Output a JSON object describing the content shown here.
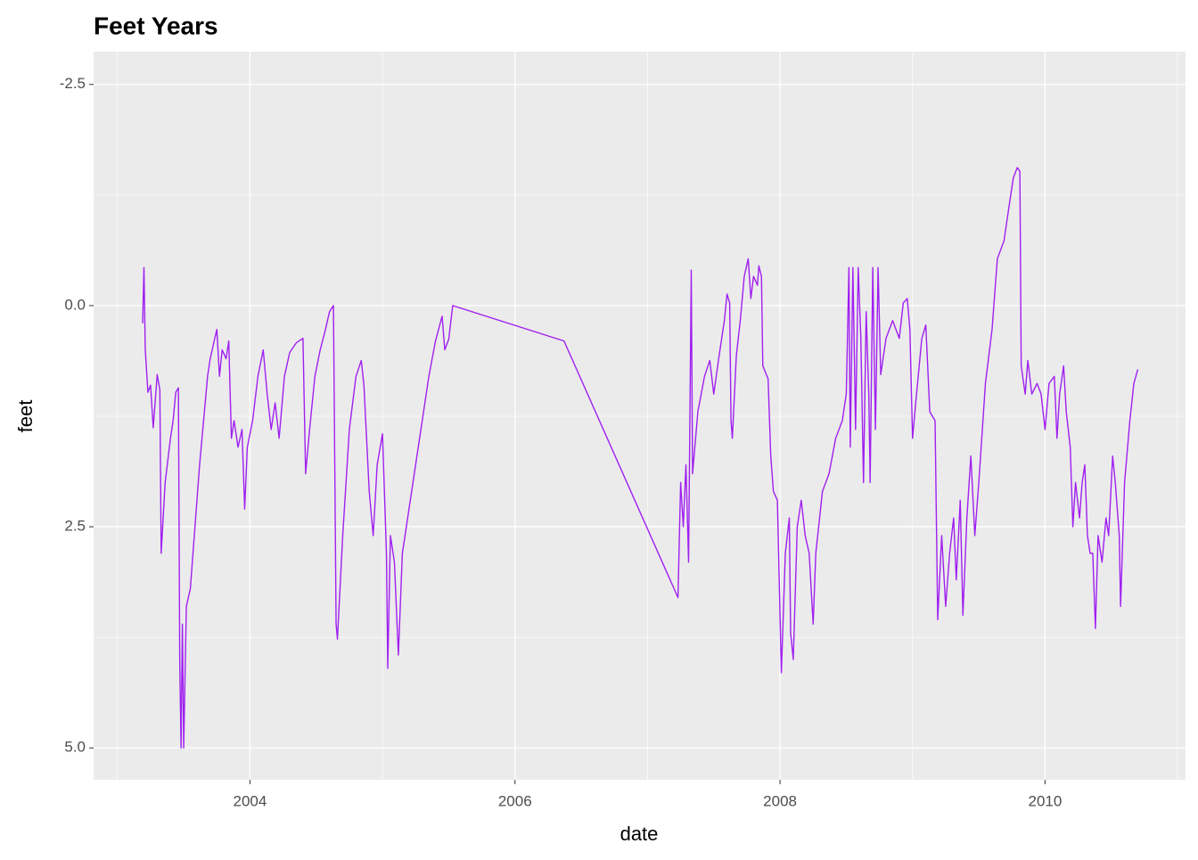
{
  "chart_data": {
    "type": "line",
    "title": "Feet Years",
    "x_label": "date",
    "y_label": "feet",
    "color": "#a020f0",
    "y_reversed": true,
    "grid": true,
    "xlim": [
      2002.82,
      2011.06
    ],
    "xticks": [
      2004,
      2006,
      2008,
      2010
    ],
    "xminor": [
      2003,
      2005,
      2007,
      2009,
      2011
    ],
    "ylim": [
      -2.87,
      5.36
    ],
    "yticks": [
      -2.5,
      {
        "value": 0,
        "label": "0.0"
      },
      2.5,
      {
        "value": 5,
        "label": "5.0"
      }
    ],
    "yminor": [
      -1.25,
      1.25,
      3.75
    ],
    "x": [
      2003.19,
      2003.2,
      2003.21,
      2003.23,
      2003.25,
      2003.27,
      2003.3,
      2003.32,
      2003.33,
      2003.36,
      2003.4,
      2003.42,
      2003.44,
      2003.46,
      2003.47,
      2003.48,
      2003.49,
      2003.5,
      2003.52,
      2003.55,
      2003.58,
      2003.62,
      2003.65,
      2003.68,
      2003.7,
      2003.73,
      2003.75,
      2003.77,
      2003.79,
      2003.82,
      2003.84,
      2003.86,
      2003.88,
      2003.91,
      2003.94,
      2003.96,
      2003.98,
      2004.02,
      2004.06,
      2004.1,
      2004.13,
      2004.16,
      2004.19,
      2004.22,
      2004.26,
      2004.3,
      2004.35,
      2004.4,
      2004.42,
      2004.45,
      2004.49,
      2004.53,
      2004.57,
      2004.6,
      2004.63,
      2004.65,
      2004.66,
      2004.7,
      2004.75,
      2004.8,
      2004.84,
      2004.86,
      2004.9,
      2004.93,
      2004.96,
      2005.0,
      2005.03,
      2005.04,
      2005.06,
      2005.09,
      2005.11,
      2005.12,
      2005.15,
      2005.2,
      2005.25,
      2005.3,
      2005.35,
      2005.4,
      2005.45,
      2005.47,
      2005.5,
      2005.53,
      2006.37,
      2007.23,
      2007.25,
      2007.27,
      2007.29,
      2007.31,
      2007.33,
      2007.34,
      2007.38,
      2007.43,
      2007.47,
      2007.5,
      2007.54,
      2007.58,
      2007.6,
      2007.62,
      2007.63,
      2007.64,
      2007.67,
      2007.7,
      2007.73,
      2007.76,
      2007.78,
      2007.8,
      2007.83,
      2007.84,
      2007.86,
      2007.87,
      2007.91,
      2007.93,
      2007.95,
      2007.98,
      2008.01,
      2008.04,
      2008.07,
      2008.08,
      2008.1,
      2008.13,
      2008.16,
      2008.19,
      2008.22,
      2008.25,
      2008.27,
      2008.32,
      2008.37,
      2008.42,
      2008.47,
      2008.5,
      2008.52,
      2008.53,
      2008.55,
      2008.57,
      2008.59,
      2008.61,
      2008.63,
      2008.65,
      2008.67,
      2008.68,
      2008.7,
      2008.72,
      2008.74,
      2008.76,
      2008.8,
      2008.85,
      2008.9,
      2008.93,
      2008.96,
      2008.98,
      2009.0,
      2009.03,
      2009.07,
      2009.1,
      2009.13,
      2009.17,
      2009.19,
      2009.22,
      2009.25,
      2009.28,
      2009.31,
      2009.33,
      2009.36,
      2009.38,
      2009.41,
      2009.44,
      2009.47,
      2009.5,
      2009.55,
      2009.6,
      2009.64,
      2009.69,
      2009.73,
      2009.76,
      2009.79,
      2009.81,
      2009.82,
      2009.85,
      2009.87,
      2009.9,
      2009.94,
      2009.97,
      2010.0,
      2010.03,
      2010.07,
      2010.09,
      2010.11,
      2010.14,
      2010.16,
      2010.19,
      2010.21,
      2010.23,
      2010.26,
      2010.28,
      2010.3,
      2010.32,
      2010.34,
      2010.36,
      2010.38,
      2010.4,
      2010.43,
      2010.46,
      2010.48,
      2010.51,
      2010.53,
      2010.56,
      2010.57,
      2010.6,
      2010.64,
      2010.67,
      2010.7
    ],
    "values": [
      0.2,
      -0.43,
      0.5,
      0.98,
      0.9,
      1.38,
      0.78,
      0.95,
      2.8,
      2.0,
      1.5,
      1.3,
      0.98,
      0.93,
      4.0,
      5.0,
      3.6,
      5.0,
      3.4,
      3.2,
      2.6,
      1.8,
      1.3,
      0.8,
      0.6,
      0.4,
      0.27,
      0.8,
      0.5,
      0.6,
      0.4,
      1.5,
      1.3,
      1.6,
      1.4,
      2.3,
      1.6,
      1.3,
      0.8,
      0.5,
      1.0,
      1.4,
      1.1,
      1.5,
      0.8,
      0.53,
      0.42,
      0.37,
      1.9,
      1.4,
      0.8,
      0.5,
      0.27,
      0.07,
      0.0,
      3.6,
      3.77,
      2.6,
      1.4,
      0.8,
      0.62,
      0.9,
      2.1,
      2.6,
      1.8,
      1.45,
      2.8,
      4.1,
      2.6,
      2.9,
      3.6,
      3.95,
      2.8,
      2.3,
      1.8,
      1.3,
      0.8,
      0.4,
      0.12,
      0.5,
      0.38,
      0.0,
      0.4,
      3.3,
      2.0,
      2.5,
      1.8,
      2.9,
      -0.4,
      1.9,
      1.2,
      0.8,
      0.62,
      1.0,
      0.57,
      0.17,
      -0.13,
      -0.03,
      1.3,
      1.5,
      0.57,
      0.17,
      -0.33,
      -0.53,
      -0.08,
      -0.33,
      -0.23,
      -0.45,
      -0.33,
      0.68,
      0.83,
      1.7,
      2.1,
      2.2,
      4.15,
      2.8,
      2.4,
      3.7,
      4.0,
      2.5,
      2.2,
      2.6,
      2.8,
      3.6,
      2.8,
      2.1,
      1.9,
      1.5,
      1.3,
      1.0,
      -0.43,
      1.6,
      -0.43,
      1.4,
      -0.43,
      0.37,
      2.0,
      0.07,
      1.0,
      2.0,
      -0.43,
      1.4,
      -0.43,
      0.78,
      0.37,
      0.17,
      0.37,
      -0.03,
      -0.08,
      0.27,
      1.5,
      1.0,
      0.37,
      0.22,
      1.2,
      1.3,
      3.55,
      2.6,
      3.4,
      2.8,
      2.4,
      3.1,
      2.2,
      3.5,
      2.4,
      1.7,
      2.6,
      2.0,
      0.88,
      0.27,
      -0.53,
      -0.73,
      -1.14,
      -1.44,
      -1.56,
      -1.52,
      0.68,
      1.0,
      0.62,
      1.0,
      0.88,
      1.0,
      1.4,
      0.88,
      0.8,
      1.5,
      1.0,
      0.68,
      1.2,
      1.6,
      2.5,
      2.0,
      2.4,
      2.0,
      1.8,
      2.6,
      2.8,
      2.8,
      3.65,
      2.6,
      2.9,
      2.4,
      2.6,
      1.7,
      2.0,
      2.6,
      3.4,
      2.0,
      1.3,
      0.88,
      0.72
    ]
  }
}
